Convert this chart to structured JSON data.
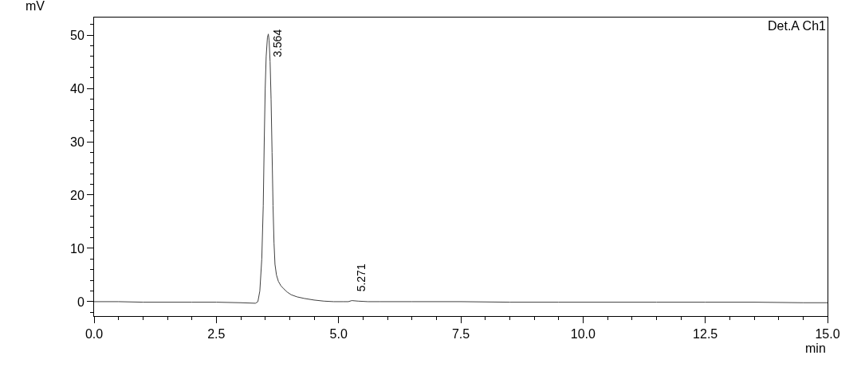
{
  "chart_data": {
    "type": "line",
    "xlabel": "min",
    "ylabel": "mV",
    "x": [
      0,
      0.5,
      1,
      1.5,
      2,
      2.5,
      3,
      3.3,
      3.35,
      3.39,
      3.43,
      3.46,
      3.48,
      3.5,
      3.52,
      3.545,
      3.564,
      3.58,
      3.6,
      3.62,
      3.64,
      3.66,
      3.68,
      3.7,
      3.73,
      3.77,
      3.82,
      3.88,
      3.95,
      4.03,
      4.15,
      4.3,
      4.5,
      4.7,
      4.9,
      5.1,
      5.2,
      5.271,
      5.4,
      5.6,
      5.85,
      6.5,
      7.5,
      8.5,
      9.5,
      10.5,
      11.5,
      12.5,
      13.5,
      14.5,
      15
    ],
    "series": [
      {
        "color": "#404040",
        "values": [
          0,
          0,
          -0.1,
          -0.1,
          -0.1,
          -0.1,
          -0.2,
          -0.3,
          0,
          2,
          8,
          18,
          30,
          40,
          46,
          49.5,
          50.2,
          49,
          45,
          38,
          28,
          18,
          11,
          7,
          5,
          3.8,
          3,
          2.4,
          1.8,
          1.3,
          0.9,
          0.6,
          0.3,
          0.1,
          0,
          0,
          0,
          0.2,
          0.1,
          0,
          0,
          0,
          0,
          -0.1,
          -0.1,
          -0.1,
          -0.1,
          -0.1,
          -0.1,
          -0.2,
          -0.2
        ]
      }
    ],
    "xlim": [
      0,
      15
    ],
    "ylim": [
      -2.7,
      53.3
    ],
    "xticks": [
      {
        "value": 0,
        "label": "0.0"
      },
      {
        "value": 0.5,
        "label": null
      },
      {
        "value": 1,
        "label": null
      },
      {
        "value": 1.5,
        "label": null
      },
      {
        "value": 2,
        "label": null
      },
      {
        "value": 2.5,
        "label": "2.5"
      },
      {
        "value": 3,
        "label": null
      },
      {
        "value": 3.5,
        "label": null
      },
      {
        "value": 4,
        "label": null
      },
      {
        "value": 4.5,
        "label": null
      },
      {
        "value": 5,
        "label": "5.0"
      },
      {
        "value": 5.5,
        "label": null
      },
      {
        "value": 6,
        "label": null
      },
      {
        "value": 6.5,
        "label": null
      },
      {
        "value": 7,
        "label": null
      },
      {
        "value": 7.5,
        "label": "7.5"
      },
      {
        "value": 8,
        "label": null
      },
      {
        "value": 8.5,
        "label": null
      },
      {
        "value": 9,
        "label": null
      },
      {
        "value": 9.5,
        "label": null
      },
      {
        "value": 10,
        "label": "10.0"
      },
      {
        "value": 10.5,
        "label": null
      },
      {
        "value": 11,
        "label": null
      },
      {
        "value": 11.5,
        "label": null
      },
      {
        "value": 12,
        "label": null
      },
      {
        "value": 12.5,
        "label": "12.5"
      },
      {
        "value": 13,
        "label": null
      },
      {
        "value": 13.5,
        "label": null
      },
      {
        "value": 14,
        "label": null
      },
      {
        "value": 14.5,
        "label": null
      },
      {
        "value": 15,
        "label": "15.0"
      }
    ],
    "yticks": [
      {
        "value": -2,
        "label": null
      },
      0,
      {
        "value": 2,
        "label": null
      },
      {
        "value": 4,
        "label": null
      },
      {
        "value": 6,
        "label": null
      },
      {
        "value": 8,
        "label": null
      },
      10,
      {
        "value": 12,
        "label": null
      },
      {
        "value": 14,
        "label": null
      },
      {
        "value": 16,
        "label": null
      },
      {
        "value": 18,
        "label": null
      },
      20,
      {
        "value": 22,
        "label": null
      },
      {
        "value": 24,
        "label": null
      },
      {
        "value": 26,
        "label": null
      },
      {
        "value": 28,
        "label": null
      },
      30,
      {
        "value": 32,
        "label": null
      },
      {
        "value": 34,
        "label": null
      },
      {
        "value": 36,
        "label": null
      },
      {
        "value": 38,
        "label": null
      },
      40,
      {
        "value": 42,
        "label": null
      },
      {
        "value": 44,
        "label": null
      },
      {
        "value": 46,
        "label": null
      },
      {
        "value": 48,
        "label": null
      },
      50,
      {
        "value": 52,
        "label": null
      }
    ],
    "annotations": [
      {
        "text": "3.564",
        "x": 3.564,
        "y": 50.2
      },
      {
        "text": "5.271",
        "x": 5.271,
        "y": 0.2
      },
      "Det.A Ch1"
    ],
    "marker": "none",
    "line_style": "solid"
  }
}
